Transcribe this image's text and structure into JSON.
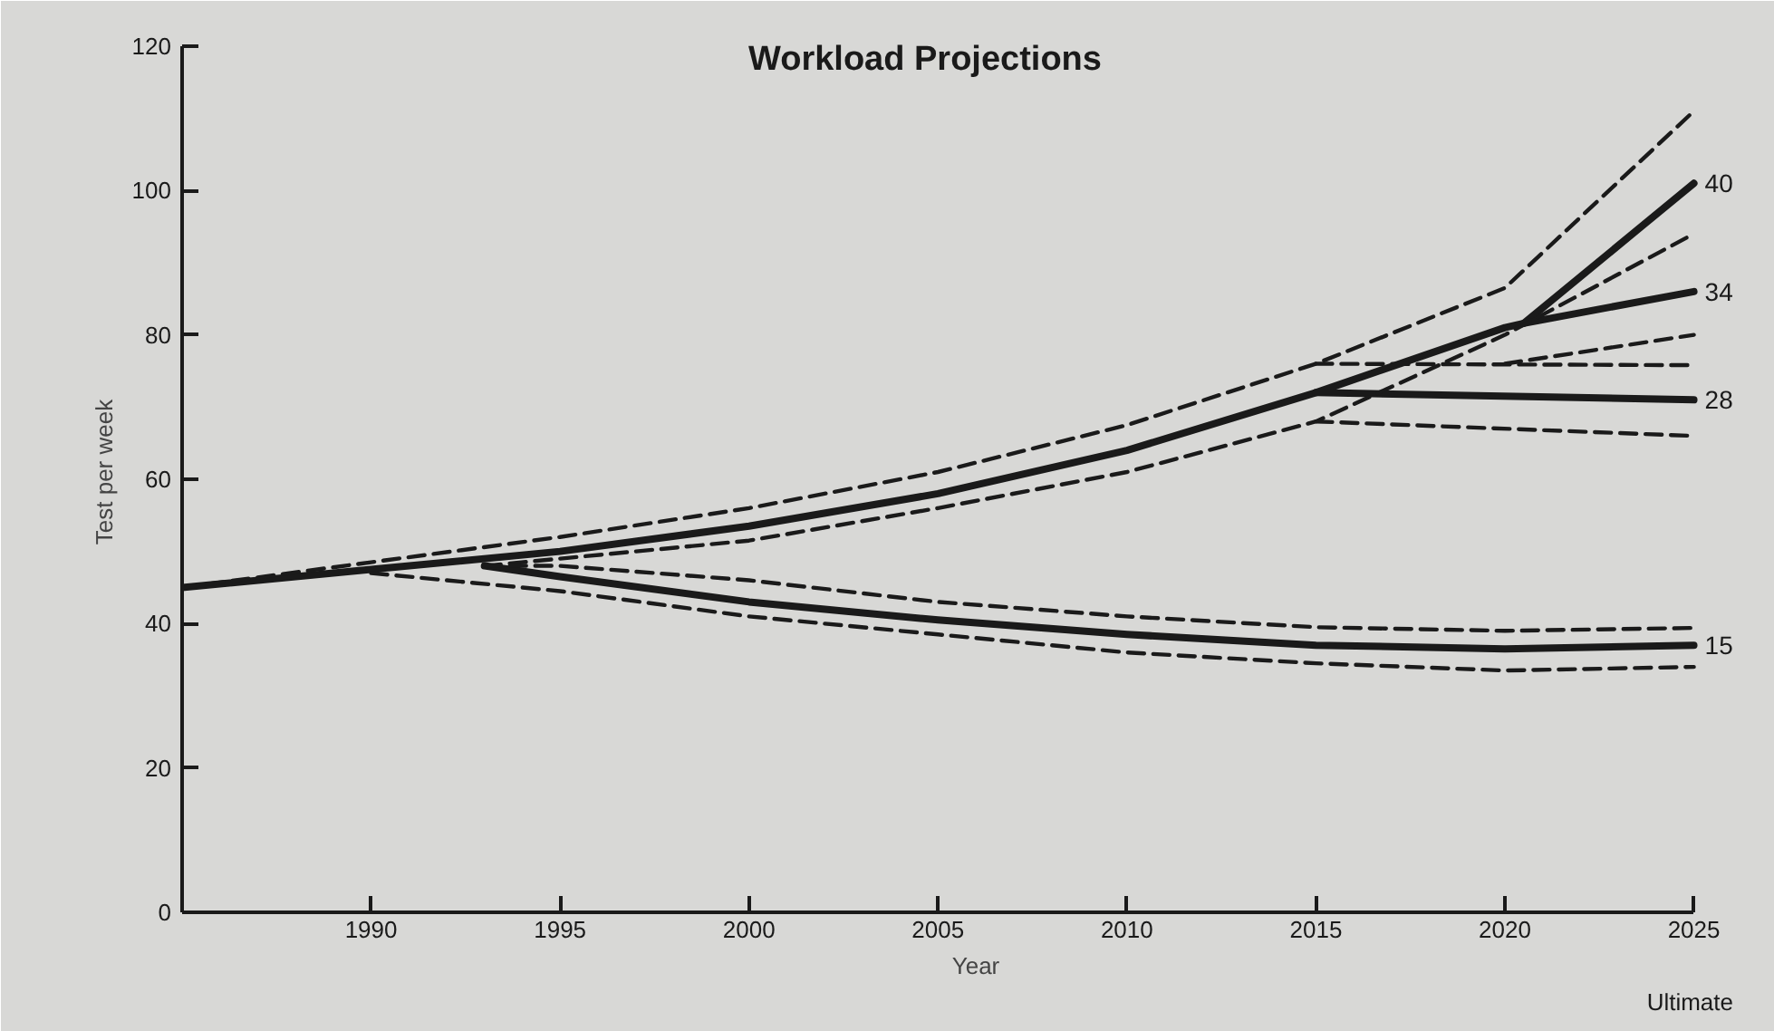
{
  "chart_data": {
    "type": "line",
    "title": "Workload Projections",
    "xlabel": "Year",
    "ylabel": "Test per week",
    "xlim": [
      1985,
      2027
    ],
    "ylim": [
      0,
      122
    ],
    "xticks": [
      1990,
      1995,
      2000,
      2005,
      2010,
      2015,
      2020,
      2025
    ],
    "yticks": [
      0,
      20,
      40,
      60,
      80,
      100,
      120
    ],
    "grid": false,
    "marker": "none",
    "line_style": "solid",
    "annotations": [
      "Ultimate"
    ],
    "series": [
      {
        "name": "40",
        "color": "#1a1a1a",
        "x": [
          1985,
          1990,
          1995,
          2000,
          2005,
          2010,
          2015,
          2020,
          2020.5,
          2025
        ],
        "values": [
          45,
          47.5,
          50,
          53.5,
          58,
          64,
          72,
          81,
          81.6,
          101
        ]
      },
      {
        "name": "34",
        "color": "#1a1a1a",
        "x": [
          2020.5,
          2025
        ],
        "values": [
          81.6,
          86
        ]
      },
      {
        "name": "28",
        "color": "#1a1a1a",
        "x": [
          2015,
          2025
        ],
        "values": [
          72,
          71
        ]
      },
      {
        "name": "15",
        "color": "#1a1a1a",
        "x": [
          1993,
          1995,
          2000,
          2005,
          2010,
          2015,
          2020,
          2025
        ],
        "values": [
          48,
          46.5,
          43,
          40.5,
          38.5,
          37,
          36.5,
          37
        ]
      },
      {
        "color": "#1a1a1a",
        "line_style": "dashed",
        "x": [
          1985,
          1990,
          1995,
          2000,
          2005,
          2010,
          2015,
          2020,
          2025
        ],
        "values": [
          45,
          48.5,
          52,
          56,
          61,
          67.5,
          76,
          86.5,
          111
        ]
      },
      {
        "color": "#1a1a1a",
        "line_style": "dashed",
        "x": [
          1993,
          1995,
          2000,
          2005,
          2010,
          2015,
          2020,
          2025
        ],
        "values": [
          48,
          49,
          51.5,
          56,
          61,
          68,
          80,
          94
        ]
      },
      {
        "color": "#1a1a1a",
        "line_style": "dashed",
        "x": [
          2015,
          2025
        ],
        "values": [
          76,
          75.8
        ]
      },
      {
        "color": "#1a1a1a",
        "line_style": "dashed",
        "x": [
          2015,
          2025
        ],
        "values": [
          68,
          66
        ]
      },
      {
        "color": "#1a1a1a",
        "line_style": "dashed",
        "x": [
          2020,
          2025
        ],
        "values": [
          76,
          80
        ]
      },
      {
        "color": "#1a1a1a",
        "line_style": "dashed",
        "x": [
          1993,
          1995,
          2000,
          2005,
          2010,
          2015,
          2020,
          2025
        ],
        "values": [
          48,
          48,
          46,
          43,
          41,
          39.5,
          39,
          39.4
        ]
      },
      {
        "color": "#1a1a1a",
        "line_style": "dashed",
        "x": [
          1990,
          1995,
          2000,
          2005,
          2010,
          2015,
          2020,
          2025
        ],
        "values": [
          47,
          44.5,
          41,
          38.5,
          36,
          34.5,
          33.5,
          34
        ]
      }
    ]
  }
}
